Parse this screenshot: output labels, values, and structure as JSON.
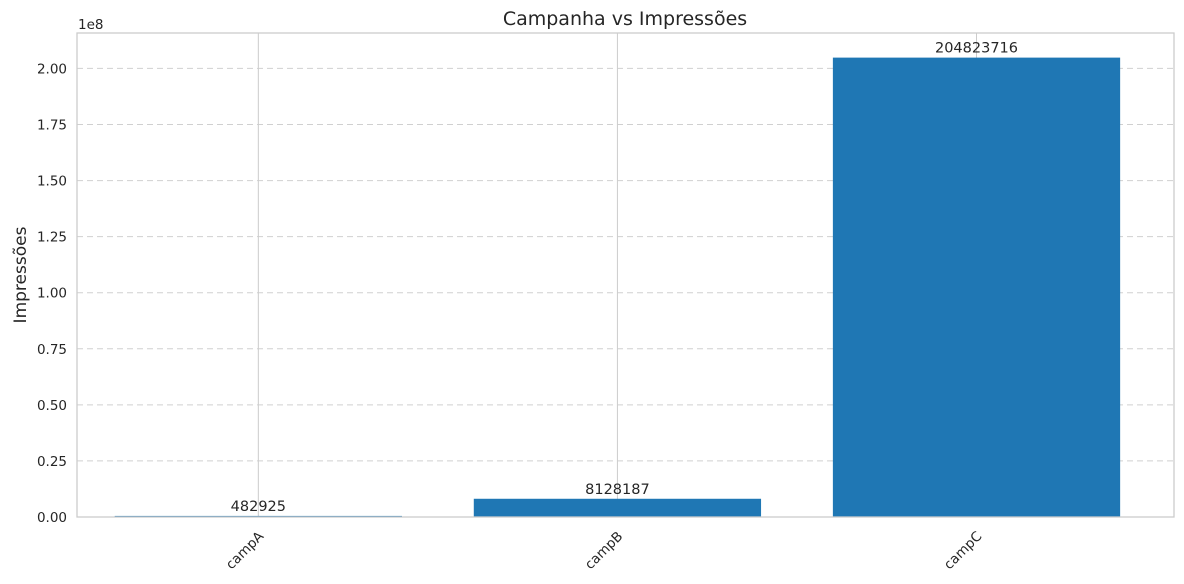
{
  "chart_data": {
    "type": "bar",
    "title": "Campanha vs Impressões",
    "xlabel": "",
    "ylabel": "Impressões",
    "categories": [
      "campA",
      "campB",
      "campC"
    ],
    "values": [
      482925,
      8128187,
      204823716
    ],
    "data_labels": [
      "482925",
      "8128187",
      "204823716"
    ],
    "y_offset_label": "1e8",
    "y_ticks": [
      0,
      0.25,
      0.5,
      0.75,
      1.0,
      1.25,
      1.5,
      1.75,
      2.0
    ],
    "y_tick_labels": [
      "0.00",
      "0.25",
      "0.50",
      "0.75",
      "1.00",
      "1.25",
      "1.50",
      "1.75",
      "2.00"
    ],
    "y_scale": 100000000,
    "ylim": [
      0,
      215800000
    ],
    "grid": {
      "y": "dashed",
      "x": "solid"
    },
    "bar_color": "#1f77b4",
    "x_tick_rotation": 45
  }
}
